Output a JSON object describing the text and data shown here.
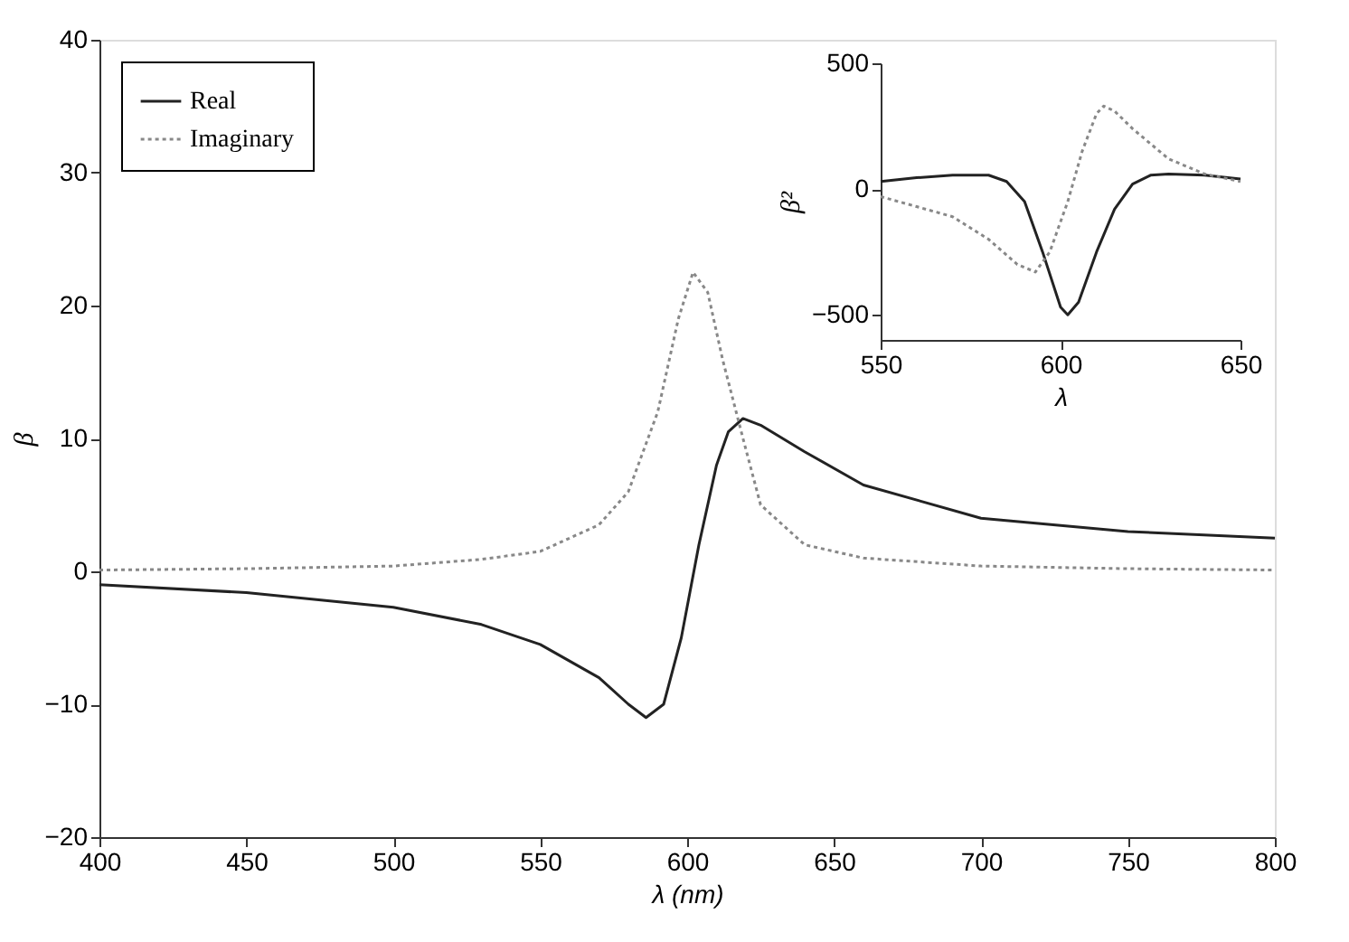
{
  "chart_data": [
    {
      "type": "line",
      "xlabel": "λ (nm)",
      "ylabel": "β",
      "xlim": [
        400,
        800
      ],
      "ylim": [
        -20,
        40
      ],
      "xticks": [
        400,
        450,
        500,
        550,
        600,
        650,
        700,
        750,
        800
      ],
      "yticks": [
        -20,
        -10,
        0,
        10,
        20,
        30,
        40
      ],
      "legend": "top left",
      "series": [
        {
          "name": "Real",
          "color": "#222222",
          "line_style": "solid",
          "x": [
            400,
            450,
            500,
            530,
            550,
            570,
            580,
            586,
            592,
            598,
            604,
            610,
            614,
            619,
            625,
            640,
            660,
            700,
            750,
            800
          ],
          "values": [
            -1,
            -1.6,
            -2.7,
            -4,
            -5.5,
            -8,
            -10,
            -11,
            -10,
            -5,
            2,
            8,
            10.5,
            11.5,
            11,
            9,
            6.5,
            4,
            3,
            2.5
          ]
        },
        {
          "name": "Imaginary",
          "color": "#888888",
          "line_style": "dotted",
          "x": [
            400,
            450,
            500,
            530,
            550,
            570,
            580,
            590,
            597,
            602,
            607,
            612,
            619,
            625,
            640,
            660,
            700,
            750,
            800
          ],
          "values": [
            0.1,
            0.2,
            0.4,
            0.9,
            1.5,
            3.5,
            6,
            12,
            19,
            22.5,
            21,
            16,
            10,
            5,
            2,
            1,
            0.4,
            0.2,
            0.1
          ]
        }
      ]
    },
    {
      "type": "line",
      "xlabel": "λ",
      "ylabel": "β²",
      "xlim": [
        550,
        650
      ],
      "ylim": [
        -600,
        500
      ],
      "xticks": [
        550,
        600,
        650
      ],
      "yticks": [
        -500,
        0,
        500
      ],
      "series": [
        {
          "color": "#222222",
          "line_style": "solid",
          "x": [
            550,
            560,
            570,
            580,
            585,
            590,
            595,
            600,
            602,
            605,
            610,
            615,
            620,
            625,
            630,
            640,
            650
          ],
          "values": [
            30,
            45,
            55,
            55,
            30,
            -50,
            -250,
            -470,
            -500,
            -450,
            -250,
            -80,
            20,
            55,
            60,
            55,
            40
          ]
        },
        {
          "color": "#888888",
          "line_style": "dotted",
          "x": [
            550,
            560,
            570,
            580,
            588,
            593,
            597,
            602,
            606,
            610,
            612,
            615,
            620,
            630,
            640,
            650
          ],
          "values": [
            -30,
            -70,
            -110,
            -200,
            -300,
            -330,
            -250,
            -50,
            150,
            300,
            330,
            310,
            240,
            120,
            60,
            30
          ]
        }
      ]
    }
  ]
}
